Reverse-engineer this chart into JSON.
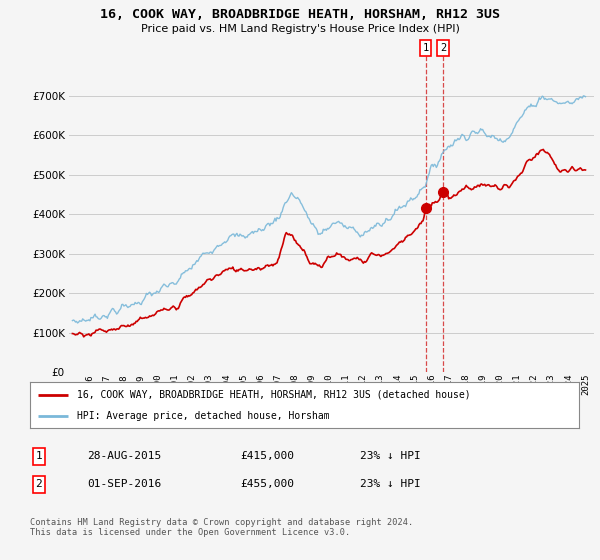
{
  "title": "16, COOK WAY, BROADBRIDGE HEATH, HORSHAM, RH12 3US",
  "subtitle": "Price paid vs. HM Land Registry's House Price Index (HPI)",
  "legend_line1": "16, COOK WAY, BROADBRIDGE HEATH, HORSHAM, RH12 3US (detached house)",
  "legend_line2": "HPI: Average price, detached house, Horsham",
  "footnote": "Contains HM Land Registry data © Crown copyright and database right 2024.\nThis data is licensed under the Open Government Licence v3.0.",
  "transaction1_label": "1",
  "transaction1_date": "28-AUG-2015",
  "transaction1_price": "£415,000",
  "transaction1_hpi": "23% ↓ HPI",
  "transaction2_label": "2",
  "transaction2_date": "01-SEP-2016",
  "transaction2_price": "£455,000",
  "transaction2_hpi": "23% ↓ HPI",
  "hpi_color": "#7ab8d9",
  "price_color": "#cc0000",
  "marker1_date": 2015.66,
  "marker1_value": 415000,
  "marker2_date": 2016.67,
  "marker2_value": 455000,
  "ylim": [
    0,
    800000
  ],
  "yticks": [
    0,
    100000,
    200000,
    300000,
    400000,
    500000,
    600000,
    700000
  ],
  "xlim_min": 1994.8,
  "xlim_max": 2025.5,
  "background_color": "#f5f5f5",
  "plot_bg_color": "#f5f5f5",
  "grid_color": "#cccccc"
}
